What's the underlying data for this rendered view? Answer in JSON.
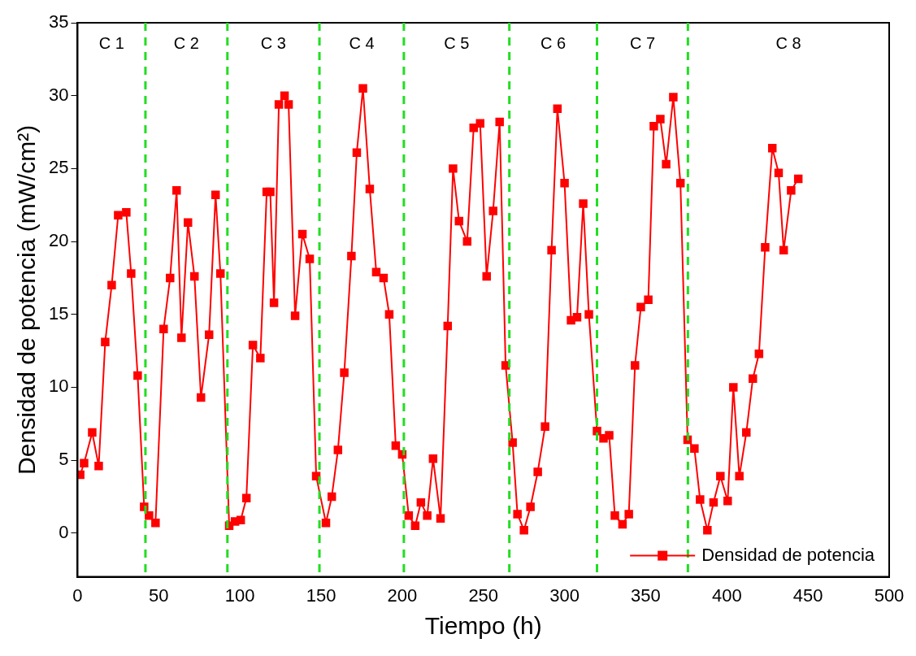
{
  "chart_data": {
    "type": "line",
    "xlabel": "Tiempo (h)",
    "ylabel": "Densidad de potencia (mW/cm²)",
    "xlim": [
      0,
      500
    ],
    "xticks": [
      0,
      50,
      100,
      150,
      200,
      250,
      300,
      350,
      400,
      450,
      500
    ],
    "ylim": [
      -3,
      35
    ],
    "yticks": [
      0,
      5,
      10,
      15,
      20,
      25,
      30,
      35
    ],
    "legend": "bottom right",
    "marker": "square",
    "line_style": "solid",
    "series": [
      {
        "name": "Densidad de potencia",
        "color": "#ff0000",
        "x": [
          1.6,
          4,
          9,
          13,
          17,
          21,
          25,
          30,
          33,
          37,
          41,
          44,
          48,
          53,
          57,
          61,
          64,
          68,
          72,
          76,
          81,
          85,
          88,
          93.4,
          97,
          100.5,
          104,
          108,
          112.6,
          116.5,
          118.7,
          121,
          124,
          127.5,
          130,
          134,
          138.5,
          143,
          147,
          153,
          156.6,
          160.4,
          164.3,
          168.7,
          172,
          175.8,
          180,
          184,
          188.5,
          192,
          196,
          200,
          204,
          208,
          211.5,
          215.4,
          219,
          223.6,
          228,
          231.3,
          235,
          240,
          244,
          248,
          252,
          256,
          260,
          263.7,
          268,
          271,
          275,
          279,
          283.5,
          288,
          292,
          295.6,
          300,
          304,
          307.7,
          311.5,
          315,
          320,
          324,
          327.5,
          331,
          335.7,
          339.6,
          343.4,
          347,
          351.6,
          355,
          359,
          362.6,
          367,
          371.4,
          375.8,
          380,
          383.5,
          388,
          391.8,
          396,
          400.5,
          404,
          407.7,
          412,
          416,
          419.8,
          423.6,
          428,
          431.9,
          435,
          439.6,
          444
        ],
        "values": [
          4.0,
          4.8,
          6.9,
          4.6,
          13.1,
          17.0,
          21.8,
          22.0,
          17.8,
          10.8,
          1.8,
          1.2,
          0.7,
          14.0,
          17.5,
          23.5,
          13.4,
          21.3,
          17.6,
          9.3,
          13.6,
          23.2,
          17.8,
          0.5,
          0.8,
          0.9,
          2.4,
          12.9,
          12.0,
          23.4,
          23.4,
          15.8,
          29.4,
          30.0,
          29.4,
          14.9,
          20.5,
          18.8,
          3.9,
          0.7,
          2.5,
          5.7,
          11.0,
          19.0,
          26.1,
          30.5,
          23.6,
          17.9,
          17.5,
          15.0,
          6.0,
          5.4,
          1.2,
          0.5,
          2.1,
          1.2,
          5.1,
          1.0,
          14.2,
          25.0,
          21.4,
          20.0,
          27.8,
          28.1,
          17.6,
          22.1,
          28.2,
          11.5,
          6.2,
          1.3,
          0.2,
          1.8,
          4.2,
          7.3,
          19.4,
          29.1,
          24.0,
          14.6,
          14.8,
          22.6,
          15.0,
          7.0,
          6.5,
          6.7,
          1.2,
          0.6,
          1.3,
          11.5,
          15.5,
          16.0,
          27.9,
          28.4,
          25.3,
          29.9,
          24.0,
          6.4,
          5.8,
          2.3,
          0.2,
          2.1,
          3.9,
          2.2,
          10.0,
          3.9,
          6.9,
          10.6,
          12.3,
          19.6,
          26.4,
          24.7,
          19.4,
          23.5,
          24.3
        ]
      }
    ],
    "ref_lines": [
      {
        "axis": "x",
        "value": 41.8,
        "color": "#22dd22",
        "line_style": "dashed"
      },
      {
        "axis": "x",
        "value": 92.3,
        "color": "#22dd22",
        "line_style": "dashed"
      },
      {
        "axis": "x",
        "value": 149,
        "color": "#22dd22",
        "line_style": "dashed"
      },
      {
        "axis": "x",
        "value": 201,
        "color": "#22dd22",
        "line_style": "dashed"
      },
      {
        "axis": "x",
        "value": 266,
        "color": "#22dd22",
        "line_style": "dashed"
      },
      {
        "axis": "x",
        "value": 320,
        "color": "#22dd22",
        "line_style": "dashed"
      },
      {
        "axis": "x",
        "value": 376,
        "color": "#22dd22",
        "line_style": "dashed"
      }
    ],
    "annotations": [
      "C 1",
      "C 2",
      "C 3",
      "C 4",
      "C 5",
      "C 6",
      "C 7",
      "C 8"
    ]
  }
}
